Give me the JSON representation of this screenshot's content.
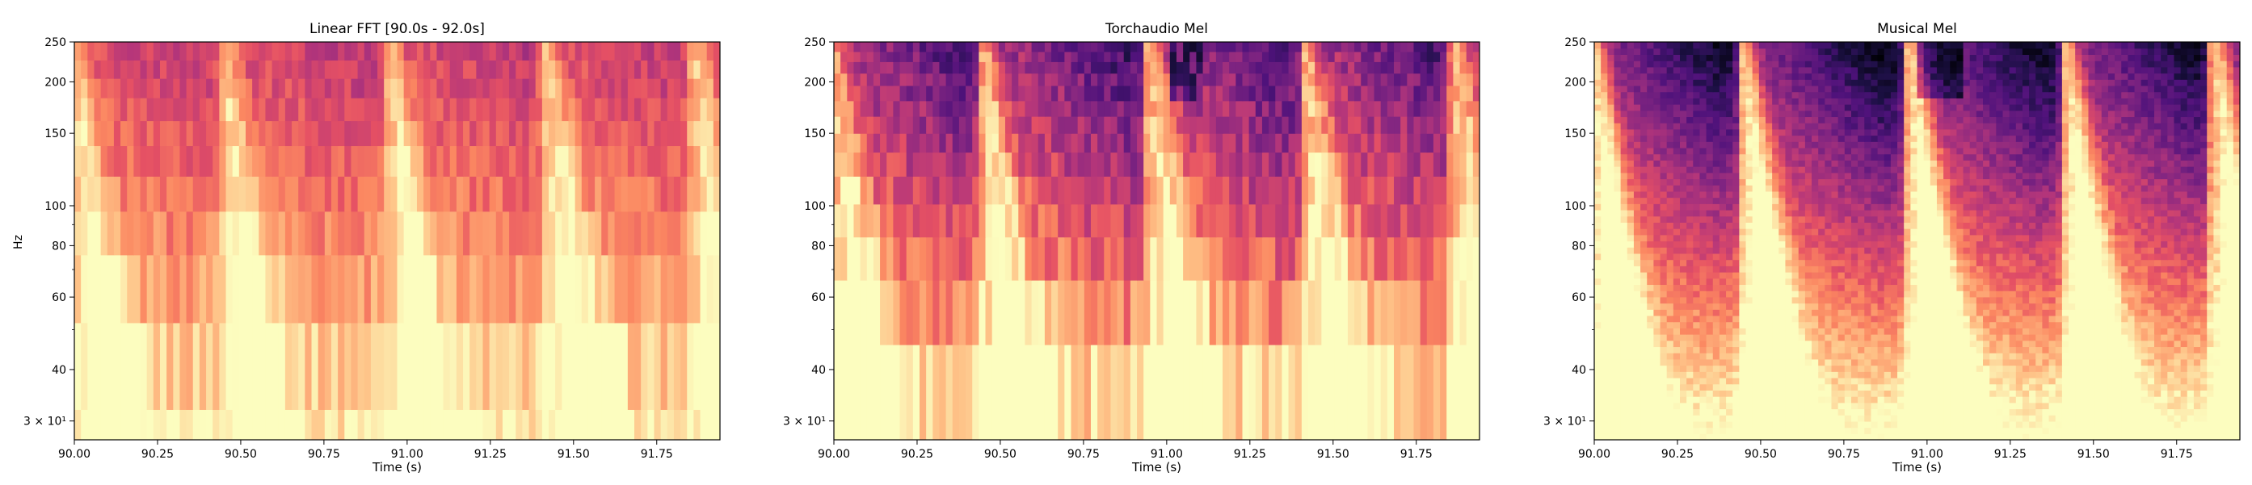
{
  "figure": {
    "ylabel": "Hz",
    "colors": {
      "low": "#000004",
      "mid": "#b73779",
      "high": "#fcfdbf"
    }
  },
  "chart_data": [
    {
      "type": "heatmap",
      "title": "Linear FFT [90.0s - 92.0s]",
      "xlabel": "Time (s)",
      "ylabel": "Hz",
      "xlim": [
        90.0,
        91.94
      ],
      "ylim": [
        27,
        250
      ],
      "yscale": "log",
      "colormap": "magma",
      "xticks": [
        "90.00",
        "90.25",
        "90.50",
        "90.75",
        "91.00",
        "91.25",
        "91.50",
        "91.75"
      ],
      "yticks": [
        "3 × 10¹",
        "40",
        "60",
        "80",
        "100",
        "150",
        "200",
        "250"
      ],
      "frequency_bins_hz": [
        27,
        32,
        52,
        76,
        97,
        118,
        140,
        161,
        183,
        204,
        226,
        250
      ],
      "grid": false
    },
    {
      "type": "heatmap",
      "title": "Torchaudio Mel",
      "xlabel": "Time (s)",
      "ylabel": "",
      "xlim": [
        90.0,
        91.94
      ],
      "ylim": [
        27,
        250
      ],
      "yscale": "log",
      "colormap": "magma",
      "xticks": [
        "90.00",
        "90.25",
        "90.50",
        "90.75",
        "91.00",
        "91.25",
        "91.50",
        "91.75"
      ],
      "yticks": [
        "3 × 10¹",
        "40",
        "60",
        "80",
        "100",
        "150",
        "200",
        "250"
      ],
      "frequency_bins_hz": [
        27,
        46,
        66,
        84,
        101,
        118,
        135,
        150,
        165,
        180,
        196,
        210,
        224,
        237,
        250
      ],
      "grid": false
    },
    {
      "type": "heatmap",
      "title": "Musical Mel",
      "xlabel": "Time (s)",
      "ylabel": "",
      "xlim": [
        90.0,
        91.94
      ],
      "ylim": [
        27,
        250
      ],
      "yscale": "log",
      "colormap": "magma",
      "xticks": [
        "90.00",
        "90.25",
        "90.50",
        "90.75",
        "91.00",
        "91.25",
        "91.50",
        "91.75"
      ],
      "yticks": [
        "3 × 10¹",
        "40",
        "60",
        "80",
        "100",
        "150",
        "200",
        "250"
      ],
      "frequency_bins_hz": "fine (~64 log-spaced bands)",
      "grid": false
    }
  ]
}
